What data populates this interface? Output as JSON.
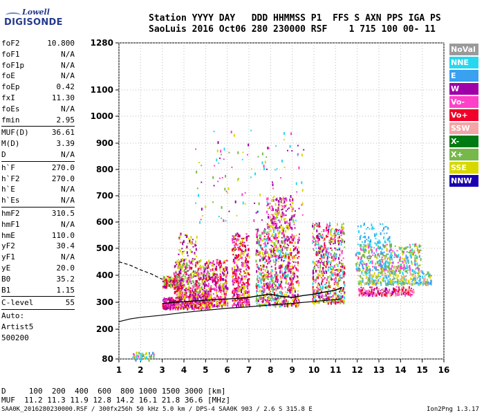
{
  "logo": {
    "top": "Lowell",
    "bottom": "DIGISONDE"
  },
  "header": {
    "line1": "Station YYYY DAY   DDD HHMMSS P1  FFS S AXN PPS IGA PS",
    "line2": "SaoLuis 2016 Oct06 280 230000 RSF    1 715 100 00- 11"
  },
  "params_a": [
    {
      "name": "foF2",
      "value": "10.800"
    },
    {
      "name": "foF1",
      "value": "N/A"
    },
    {
      "name": "foF1p",
      "value": "N/A"
    },
    {
      "name": "foE",
      "value": "N/A"
    },
    {
      "name": "foEp",
      "value": "0.42"
    },
    {
      "name": "fxI",
      "value": "11.30"
    },
    {
      "name": "foEs",
      "value": "N/A"
    },
    {
      "name": "fmin",
      "value": "2.95"
    }
  ],
  "params_b": [
    {
      "name": "MUF(D)",
      "value": "36.61"
    },
    {
      "name": "M(D)",
      "value": "3.39"
    },
    {
      "name": "D",
      "value": "N/A"
    }
  ],
  "params_c": [
    {
      "name": "h`F",
      "value": "270.0"
    },
    {
      "name": "h`F2",
      "value": "270.0"
    },
    {
      "name": "h`E",
      "value": "N/A"
    },
    {
      "name": "h`Es",
      "value": "N/A"
    }
  ],
  "params_d": [
    {
      "name": "hmF2",
      "value": "310.5"
    },
    {
      "name": "hmF1",
      "value": "N/A"
    },
    {
      "name": "hmE",
      "value": "110.0"
    },
    {
      "name": "yF2",
      "value": "30.4"
    },
    {
      "name": "yF1",
      "value": "N/A"
    },
    {
      "name": "yE",
      "value": "20.0"
    },
    {
      "name": "B0",
      "value": "35.2"
    },
    {
      "name": "B1",
      "value": "1.15"
    }
  ],
  "params_e": [
    {
      "name": "C-level",
      "value": "55"
    }
  ],
  "auto": {
    "line1": "Auto:",
    "line2": "Artist5",
    "line3": "500200"
  },
  "legend": [
    {
      "label": "NoVal",
      "color": "#9a9a9a"
    },
    {
      "label": "NNE",
      "color": "#27d7f0"
    },
    {
      "label": "E",
      "color": "#3aa0f0"
    },
    {
      "label": "W",
      "color": "#a000a8"
    },
    {
      "label": "Vo-",
      "color": "#ff40c8"
    },
    {
      "label": "Vo+",
      "color": "#f0002a"
    },
    {
      "label": "SSW",
      "color": "#f4a6a6"
    },
    {
      "label": "X-",
      "color": "#007a12"
    },
    {
      "label": "X+",
      "color": "#77b84a"
    },
    {
      "label": "SSE",
      "color": "#d8d800"
    },
    {
      "label": "NNW",
      "color": "#1800b0"
    }
  ],
  "footer": {
    "distance": "D     100  200  400  600  800 1000 1500 3000 [km]",
    "muf": "MUF  11.2 11.3 11.9 12.8 14.2 16.1 21.8 36.6 [MHz]",
    "file": "SAA0K_2016280230000.RSF / 300fx256h 50 kHz 5.0 km / DPS-4 SAA0K 903 / 2.6 S 315.8 E",
    "version": "Ion2Png 1.3.17"
  },
  "chart_data": {
    "type": "scatter",
    "x_ticks": [
      "1",
      "2",
      "3",
      "4",
      "5",
      "6",
      "7",
      "8",
      "9",
      "10",
      "11",
      "12",
      "13",
      "14",
      "15",
      "16"
    ],
    "y_ticks": [
      "80",
      "200",
      "300",
      "400",
      "500",
      "600",
      "700",
      "800",
      "900",
      "1000",
      "1100",
      "1280"
    ],
    "xlim": [
      1,
      16
    ],
    "ylim": [
      80,
      1280
    ],
    "grid": "dotted",
    "legend_position": "right",
    "o_trace_virtual_height": {
      "x": [
        3.0,
        3.5,
        4.0,
        5.0,
        6.0,
        7.0,
        7.5,
        8.0,
        8.5,
        9.0,
        9.5,
        10.0,
        10.5,
        11.0,
        11.3
      ],
      "y": [
        295,
        300,
        302,
        308,
        312,
        318,
        325,
        330,
        322,
        318,
        325,
        330,
        338,
        345,
        355
      ]
    },
    "profile_solid": {
      "x": [
        1.0,
        1.5,
        2.0,
        3.0,
        4.0,
        5.0,
        6.0,
        7.0,
        8.0,
        9.0,
        10.0,
        11.0,
        11.3
      ],
      "y": [
        228,
        238,
        244,
        252,
        262,
        270,
        278,
        283,
        290,
        296,
        303,
        310,
        313
      ]
    },
    "profile_dashed": {
      "x": [
        1.0,
        1.5,
        2.0,
        2.5,
        3.0
      ],
      "y": [
        450,
        438,
        420,
        405,
        385
      ]
    },
    "echo_clusters": [
      {
        "x": [
          3.0,
          3.6
        ],
        "y": [
          280,
          320
        ],
        "n": 180,
        "colors": [
          "#f0002a",
          "#ff40c8",
          "#a000a8"
        ]
      },
      {
        "x": [
          3.0,
          3.9
        ],
        "y": [
          360,
          400
        ],
        "n": 200,
        "colors": [
          "#d8d800",
          "#77b84a",
          "#f0002a",
          "#a000a8"
        ]
      },
      {
        "x": [
          3.6,
          5.2
        ],
        "y": [
          280,
          340
        ],
        "n": 380,
        "colors": [
          "#f0002a",
          "#ff40c8",
          "#a000a8",
          "#d8d800"
        ]
      },
      {
        "x": [
          3.5,
          5.2
        ],
        "y": [
          340,
          460
        ],
        "n": 380,
        "colors": [
          "#a000a8",
          "#d8d800",
          "#f0002a",
          "#ff40c8",
          "#77b84a"
        ]
      },
      {
        "x": [
          3.7,
          4.6
        ],
        "y": [
          460,
          560
        ],
        "n": 60,
        "colors": [
          "#a000a8",
          "#d8d800"
        ]
      },
      {
        "x": [
          5.2,
          6.0
        ],
        "y": [
          290,
          460
        ],
        "n": 260,
        "colors": [
          "#f0002a",
          "#a000a8",
          "#d8d800",
          "#ff40c8"
        ]
      },
      {
        "x": [
          6.2,
          7.0
        ],
        "y": [
          290,
          560
        ],
        "n": 380,
        "colors": [
          "#f0002a",
          "#ff40c8",
          "#a000a8",
          "#d8d800"
        ]
      },
      {
        "x": [
          7.3,
          8.8
        ],
        "y": [
          290,
          580
        ],
        "n": 650,
        "colors": [
          "#f0002a",
          "#ff40c8",
          "#a000a8",
          "#d8d800",
          "#77b84a",
          "#27d7f0"
        ]
      },
      {
        "x": [
          7.8,
          9.1
        ],
        "y": [
          580,
          700
        ],
        "n": 180,
        "colors": [
          "#a000a8",
          "#d8d800",
          "#ff40c8"
        ]
      },
      {
        "x": [
          8.8,
          9.3
        ],
        "y": [
          290,
          560
        ],
        "n": 180,
        "colors": [
          "#f0002a",
          "#ff40c8",
          "#a000a8",
          "#d8d800"
        ]
      },
      {
        "x": [
          9.9,
          11.4
        ],
        "y": [
          300,
          600
        ],
        "n": 600,
        "colors": [
          "#f0002a",
          "#ff40c8",
          "#a000a8",
          "#d8d800",
          "#27d7f0",
          "#77b84a"
        ]
      },
      {
        "x": [
          11.9,
          14.9
        ],
        "y": [
          420,
          520
        ],
        "n": 420,
        "colors": [
          "#27d7f0",
          "#3aa0f0",
          "#77b84a",
          "#d8d800",
          "#ff40c8"
        ]
      },
      {
        "x": [
          12.0,
          15.4
        ],
        "y": [
          370,
          420
        ],
        "n": 320,
        "colors": [
          "#27d7f0",
          "#3aa0f0",
          "#f4a6a6",
          "#77b84a",
          "#d8d800"
        ]
      },
      {
        "x": [
          12.0,
          14.6
        ],
        "y": [
          330,
          360
        ],
        "n": 200,
        "colors": [
          "#f0002a",
          "#ff40c8",
          "#f4a6a6",
          "#a000a8"
        ]
      },
      {
        "x": [
          12.0,
          13.5
        ],
        "y": [
          520,
          600
        ],
        "n": 60,
        "colors": [
          "#27d7f0",
          "#3aa0f0"
        ]
      },
      {
        "x": [
          4.5,
          9.5
        ],
        "y": [
          600,
          960
        ],
        "n": 120,
        "colors": [
          "#d8d800",
          "#a000a8",
          "#ff40c8",
          "#77b84a",
          "#27d7f0"
        ]
      },
      {
        "x": [
          1.6,
          2.6
        ],
        "y": [
          80,
          110
        ],
        "n": 50,
        "colors": [
          "#27d7f0",
          "#3aa0f0",
          "#ff40c8",
          "#77b84a",
          "#d8d800"
        ]
      }
    ]
  }
}
